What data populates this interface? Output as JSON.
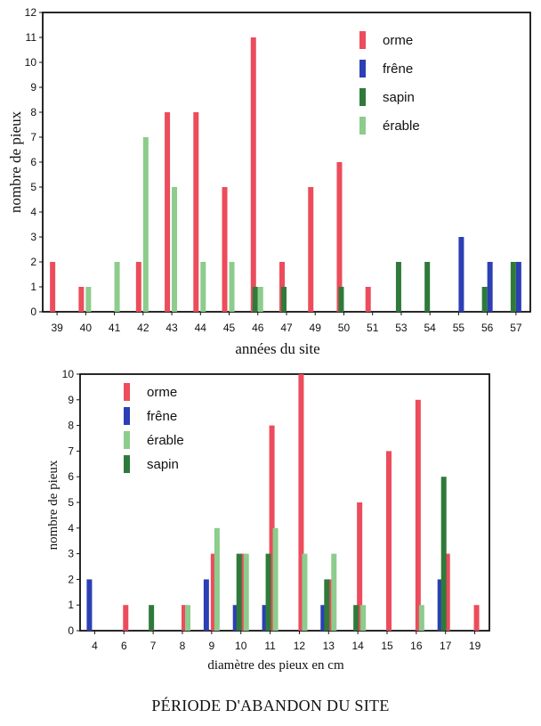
{
  "footer": {
    "title": "PÉRIODE D'ABANDON DU SITE"
  },
  "colors": {
    "orme": "#ec4c5c",
    "frene": "#2c3fb4",
    "sapin": "#2f7a3a",
    "erable": "#8ccc8c"
  },
  "chart_data": [
    {
      "type": "bar",
      "title": "",
      "xlabel": "années du site",
      "ylabel": "nombre de pieux",
      "ylim": [
        0,
        12
      ],
      "yticks": [
        0,
        1,
        2,
        3,
        4,
        5,
        6,
        7,
        8,
        9,
        10,
        11,
        12
      ],
      "grid": false,
      "legend_position": "top-right",
      "categories": [
        "39",
        "40",
        "41",
        "42",
        "43",
        "44",
        "45",
        "46",
        "47",
        "49",
        "50",
        "51",
        "53",
        "54",
        "55",
        "56",
        "57"
      ],
      "series": [
        {
          "name": "orme",
          "color": "#ec4c5c",
          "values": [
            2,
            1,
            0,
            2,
            8,
            8,
            5,
            11,
            2,
            5,
            6,
            1,
            0,
            0,
            0,
            0,
            0
          ]
        },
        {
          "name": "frêne",
          "color": "#2c3fb4",
          "values": [
            0,
            0,
            0,
            0,
            0,
            0,
            0,
            0,
            0,
            0,
            0,
            0,
            0,
            0,
            3,
            2,
            2
          ]
        },
        {
          "name": "sapin",
          "color": "#2f7a3a",
          "values": [
            0,
            0,
            0,
            0,
            0,
            0,
            0,
            1,
            1,
            0,
            1,
            0,
            2,
            2,
            0,
            1,
            2
          ]
        },
        {
          "name": "érable",
          "color": "#8ccc8c",
          "values": [
            0,
            1,
            2,
            7,
            5,
            2,
            2,
            1,
            0,
            0,
            0,
            0,
            0,
            0,
            0,
            0,
            0
          ]
        }
      ]
    },
    {
      "type": "bar",
      "title": "",
      "xlabel": "diamètre des pieux en cm",
      "ylabel": "nombre de pieux",
      "ylim": [
        0,
        10
      ],
      "yticks": [
        0,
        1,
        2,
        3,
        4,
        5,
        6,
        7,
        8,
        9,
        10
      ],
      "grid": false,
      "legend_position": "top-left",
      "categories": [
        "4",
        "6",
        "7",
        "8",
        "9",
        "10",
        "11",
        "12",
        "13",
        "14",
        "15",
        "16",
        "17",
        "19"
      ],
      "series": [
        {
          "name": "orme",
          "color": "#ec4c5c",
          "values": [
            0,
            1,
            0,
            1,
            3,
            3,
            8,
            10,
            2,
            5,
            7,
            9,
            3,
            1
          ]
        },
        {
          "name": "frêne",
          "color": "#2c3fb4",
          "values": [
            2,
            0,
            0,
            0,
            2,
            1,
            1,
            0,
            1,
            0,
            0,
            0,
            2,
            0
          ]
        },
        {
          "name": "érable",
          "color": "#8ccc8c",
          "values": [
            0,
            0,
            0,
            1,
            4,
            3,
            4,
            3,
            3,
            1,
            0,
            1,
            0,
            0
          ]
        },
        {
          "name": "sapin",
          "color": "#2f7a3a",
          "values": [
            0,
            0,
            1,
            0,
            0,
            3,
            3,
            0,
            2,
            1,
            0,
            0,
            6,
            0
          ]
        }
      ]
    }
  ]
}
